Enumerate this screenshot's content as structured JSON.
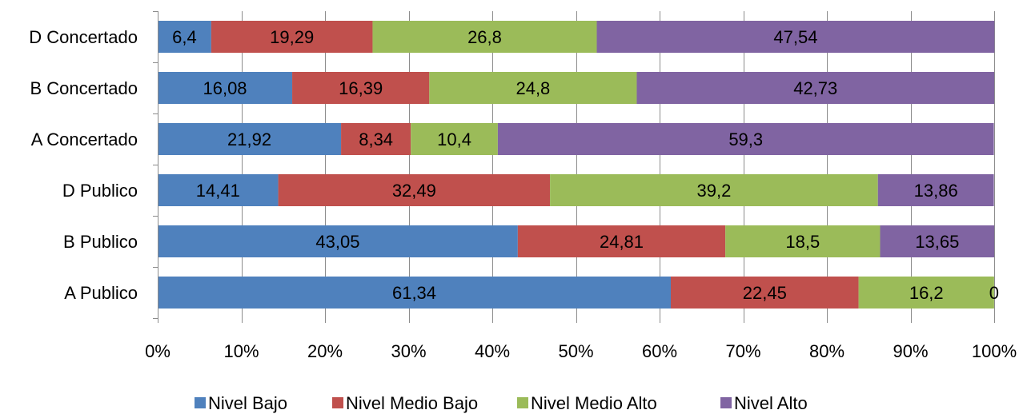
{
  "chart_data": {
    "type": "bar",
    "orientation": "horizontal",
    "stacked": "percent",
    "categories": [
      "D Concertado",
      "B Concertado",
      "A Concertado",
      "D Publico",
      "B Publico",
      "A Publico"
    ],
    "series": [
      {
        "name": "Nivel Bajo",
        "color": "#4F81BD",
        "values": [
          6.4,
          16.08,
          21.92,
          14.41,
          43.05,
          61.34
        ],
        "labels": [
          "6,4",
          "16,08",
          "21,92",
          "14,41",
          "43,05",
          "61,34"
        ]
      },
      {
        "name": "Nivel Medio Bajo",
        "color": "#C0504D",
        "values": [
          19.29,
          16.39,
          8.34,
          32.49,
          24.81,
          22.45
        ],
        "labels": [
          "19,29",
          "16,39",
          "8,34",
          "32,49",
          "24,81",
          "22,45"
        ]
      },
      {
        "name": "Nivel Medio Alto",
        "color": "#9BBB59",
        "values": [
          26.8,
          24.8,
          10.4,
          39.2,
          18.5,
          16.2
        ],
        "labels": [
          "26,8",
          "24,8",
          "10,4",
          "39,2",
          "18,5",
          "16,2"
        ]
      },
      {
        "name": "Nivel Alto",
        "color": "#8064A2",
        "values": [
          47.54,
          42.73,
          59.3,
          13.86,
          13.65,
          0
        ],
        "labels": [
          "47,54",
          "42,73",
          "59,3",
          "13,86",
          "13,65",
          "0"
        ]
      }
    ],
    "x_ticks": [
      "0%",
      "10%",
      "20%",
      "30%",
      "40%",
      "50%",
      "60%",
      "70%",
      "80%",
      "90%",
      "100%"
    ],
    "xlim": [
      0,
      100
    ],
    "title": "",
    "xlabel": "",
    "ylabel": "",
    "grid": "vertical",
    "legend": "bottom"
  }
}
